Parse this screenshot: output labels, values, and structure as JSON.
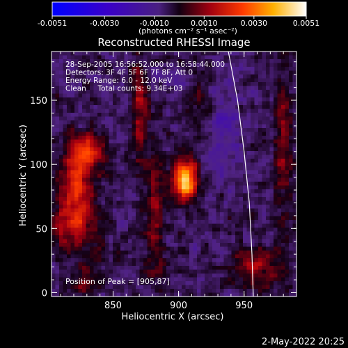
{
  "chart_data": {
    "type": "heatmap",
    "title": "Reconstructed RHESSI Image",
    "xlabel": "Heliocentric X (arcsec)",
    "ylabel": "Heliocentric Y (arcsec)",
    "xlim": [
      803,
      990
    ],
    "ylim": [
      -3,
      188
    ],
    "x_ticks": [
      850,
      900,
      950
    ],
    "y_ticks": [
      0,
      50,
      100,
      150
    ],
    "colorbar": {
      "range": [
        -0.0051,
        0.0051
      ],
      "ticks": [
        -0.0051,
        -0.003,
        -0.001,
        0.001,
        0.003,
        0.0051
      ],
      "tick_labels": [
        "-0.0051",
        "-0.0030",
        "-0.0010",
        "0.0010",
        "0.0030",
        "0.0051"
      ],
      "unit_label": "(photons cm⁻² s⁻¹ asec⁻²)"
    },
    "annotations": [
      "28-Sep-2005 16:56:52.000 to 16:58:44.000",
      "Detectors: 3F 4F 5F 6F 7F 8F, Att 0",
      "Energy Range: 6.0 - 12.0 keV",
      "Clean     Total counts: 9.34E+03"
    ],
    "peak_label": "Position of Peak = [905,87]",
    "peak": {
      "x": 905,
      "y": 87
    },
    "limb_curve": [
      [
        938,
        188
      ],
      [
        945,
        150
      ],
      [
        950,
        110
      ],
      [
        954,
        70
      ],
      [
        956,
        30
      ],
      [
        957,
        -3
      ]
    ],
    "sources": [
      {
        "x": 905,
        "y": 87,
        "sx": 6,
        "sy": 11,
        "amp": 0.0051
      },
      {
        "x": 828,
        "y": 110,
        "sx": 9,
        "sy": 10,
        "amp": 0.0033
      },
      {
        "x": 822,
        "y": 82,
        "sx": 9,
        "sy": 14,
        "amp": 0.0027
      },
      {
        "x": 820,
        "y": 50,
        "sx": 12,
        "sy": 13,
        "amp": 0.0022
      },
      {
        "x": 870,
        "y": 140,
        "sx": 4,
        "sy": 28,
        "amp": 0.0018
      },
      {
        "x": 882,
        "y": 60,
        "sx": 5,
        "sy": 40,
        "amp": 0.0015
      },
      {
        "x": 915,
        "y": 150,
        "sx": 6,
        "sy": 15,
        "amp": 0.001
      },
      {
        "x": 980,
        "y": 120,
        "sx": 5,
        "sy": 45,
        "amp": 0.0014
      },
      {
        "x": 960,
        "y": 20,
        "sx": 14,
        "sy": 12,
        "amp": 0.0013
      },
      {
        "x": 830,
        "y": 10,
        "sx": 8,
        "sy": 8,
        "amp": 0.0012
      },
      {
        "x": 935,
        "y": 130,
        "sx": 10,
        "sy": 30,
        "amp": -0.001
      },
      {
        "x": 900,
        "y": 165,
        "sx": 8,
        "sy": 8,
        "amp": -0.0008
      }
    ]
  },
  "footer": {
    "date_time": "2-May-2022 20:25"
  }
}
